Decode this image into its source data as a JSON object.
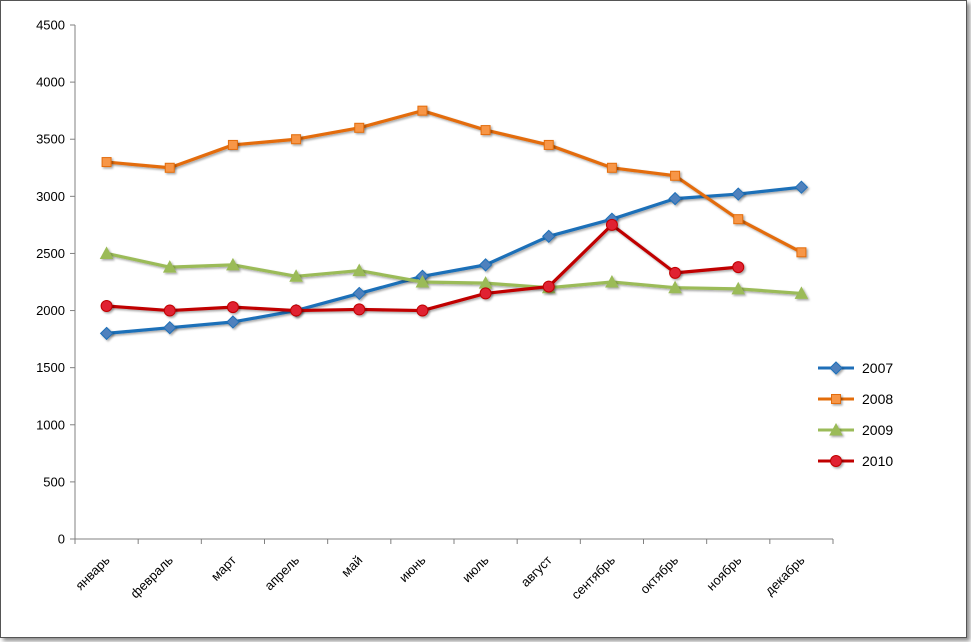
{
  "chart_data": {
    "type": "line",
    "title": "",
    "xlabel": "",
    "ylabel": "",
    "categories": [
      "январь",
      "февраль",
      "март",
      "апрель",
      "май",
      "июнь",
      "июль",
      "август",
      "сентябрь",
      "октябрь",
      "ноябрь",
      "декабрь"
    ],
    "ylim": [
      0,
      4500
    ],
    "yticks": [
      0,
      500,
      1000,
      1500,
      2000,
      2500,
      3000,
      3500,
      4000,
      4500
    ],
    "grid": false,
    "legend_position": "right",
    "series": [
      {
        "name": "2007",
        "color": "#1F6FB8",
        "marker": "diamond",
        "marker_color": "#4F81BD",
        "values": [
          1800,
          1850,
          1900,
          2000,
          2150,
          2300,
          2400,
          2650,
          2800,
          2980,
          3020,
          3080
        ]
      },
      {
        "name": "2008",
        "color": "#E36C0A",
        "marker": "square",
        "marker_color": "#F79646",
        "values": [
          3300,
          3250,
          3450,
          3500,
          3600,
          3750,
          3580,
          3450,
          3250,
          3180,
          2800,
          2510
        ]
      },
      {
        "name": "2009",
        "color": "#9BBB59",
        "marker": "triangle",
        "marker_color": "#9BBB59",
        "values": [
          2500,
          2380,
          2400,
          2300,
          2350,
          2250,
          2240,
          2200,
          2250,
          2200,
          2190,
          2150
        ]
      },
      {
        "name": "2010",
        "color": "#C00000",
        "marker": "circle",
        "marker_color": "#E02030",
        "values": [
          2040,
          2000,
          2030,
          2000,
          2010,
          2000,
          2150,
          2210,
          2750,
          2330,
          2380,
          null
        ]
      }
    ]
  }
}
